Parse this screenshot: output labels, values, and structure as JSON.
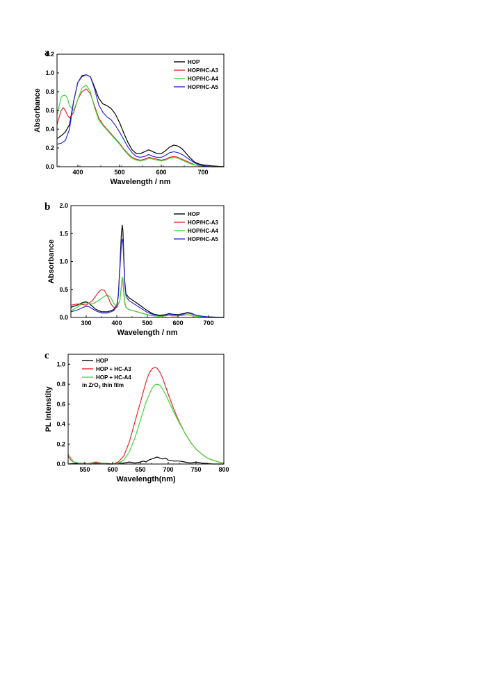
{
  "chart_data": [
    {
      "panel": "a",
      "type": "line",
      "xlabel": "Wavelength / nm",
      "ylabel": "Absorbance",
      "xlim": [
        350,
        750
      ],
      "ylim": [
        0,
        1.2
      ],
      "xticks": [
        400,
        500,
        600,
        700
      ],
      "yticks": [
        0.0,
        0.2,
        0.4,
        0.6,
        0.8,
        1.0,
        1.2
      ],
      "ytick_decimals": 1,
      "grid": false,
      "legend_position": "top-right",
      "series": [
        {
          "name": "HOP",
          "color": "#000000",
          "x": [
            350,
            360,
            370,
            380,
            390,
            400,
            410,
            420,
            430,
            440,
            450,
            460,
            470,
            480,
            490,
            500,
            510,
            520,
            530,
            540,
            550,
            560,
            570,
            580,
            590,
            600,
            610,
            620,
            630,
            640,
            650,
            660,
            670,
            680,
            690,
            700,
            720,
            750
          ],
          "y": [
            0.3,
            0.33,
            0.37,
            0.45,
            0.7,
            0.9,
            0.97,
            0.98,
            0.96,
            0.85,
            0.73,
            0.67,
            0.65,
            0.62,
            0.56,
            0.47,
            0.36,
            0.26,
            0.18,
            0.14,
            0.14,
            0.16,
            0.18,
            0.16,
            0.14,
            0.14,
            0.17,
            0.21,
            0.23,
            0.22,
            0.19,
            0.14,
            0.09,
            0.05,
            0.03,
            0.02,
            0.01,
            0.0
          ]
        },
        {
          "name": "HOP/HC-A3",
          "color": "#e8262a",
          "x": [
            350,
            360,
            365,
            370,
            375,
            380,
            390,
            400,
            410,
            420,
            430,
            440,
            450,
            460,
            470,
            480,
            490,
            500,
            510,
            520,
            530,
            540,
            550,
            560,
            570,
            580,
            590,
            600,
            610,
            620,
            630,
            640,
            650,
            660,
            670,
            680,
            690,
            700,
            720,
            750
          ],
          "y": [
            0.45,
            0.6,
            0.63,
            0.6,
            0.55,
            0.52,
            0.58,
            0.72,
            0.8,
            0.83,
            0.78,
            0.65,
            0.52,
            0.45,
            0.4,
            0.35,
            0.3,
            0.25,
            0.19,
            0.14,
            0.1,
            0.08,
            0.07,
            0.08,
            0.1,
            0.09,
            0.08,
            0.07,
            0.08,
            0.1,
            0.11,
            0.1,
            0.08,
            0.06,
            0.04,
            0.02,
            0.01,
            0.01,
            0.0,
            0.0
          ]
        },
        {
          "name": "HOP/HC-A4",
          "color": "#3ed83a",
          "x": [
            350,
            360,
            365,
            370,
            375,
            380,
            390,
            400,
            410,
            420,
            430,
            440,
            450,
            460,
            470,
            480,
            490,
            500,
            510,
            520,
            530,
            540,
            550,
            560,
            570,
            580,
            590,
            600,
            610,
            620,
            630,
            640,
            650,
            660,
            670,
            680,
            690,
            700,
            720,
            750
          ],
          "y": [
            0.55,
            0.74,
            0.76,
            0.76,
            0.73,
            0.65,
            0.6,
            0.72,
            0.84,
            0.87,
            0.8,
            0.63,
            0.5,
            0.44,
            0.39,
            0.34,
            0.29,
            0.24,
            0.18,
            0.13,
            0.09,
            0.07,
            0.06,
            0.07,
            0.09,
            0.08,
            0.07,
            0.06,
            0.07,
            0.09,
            0.1,
            0.09,
            0.07,
            0.05,
            0.03,
            0.02,
            0.01,
            0.01,
            0.0,
            0.0
          ]
        },
        {
          "name": "HOP/HC-A5",
          "color": "#2c2cd8",
          "x": [
            350,
            360,
            370,
            380,
            390,
            400,
            410,
            420,
            430,
            440,
            450,
            460,
            470,
            480,
            490,
            500,
            510,
            520,
            530,
            540,
            550,
            560,
            570,
            580,
            590,
            600,
            610,
            620,
            630,
            640,
            650,
            660,
            670,
            680,
            690,
            700,
            720,
            750
          ],
          "y": [
            0.24,
            0.25,
            0.28,
            0.4,
            0.7,
            0.9,
            0.96,
            0.98,
            0.96,
            0.83,
            0.66,
            0.58,
            0.53,
            0.5,
            0.44,
            0.37,
            0.29,
            0.21,
            0.15,
            0.11,
            0.1,
            0.11,
            0.13,
            0.11,
            0.1,
            0.1,
            0.12,
            0.15,
            0.16,
            0.15,
            0.13,
            0.1,
            0.07,
            0.04,
            0.02,
            0.01,
            0.0,
            0.0
          ]
        }
      ]
    },
    {
      "panel": "b",
      "type": "line",
      "xlabel": "Wavelength / nm",
      "ylabel": "Absorbance",
      "xlim": [
        250,
        750
      ],
      "ylim": [
        0,
        2.0
      ],
      "xticks": [
        300,
        400,
        500,
        600,
        700
      ],
      "yticks": [
        0.0,
        0.5,
        1.0,
        1.5,
        2.0
      ],
      "ytick_decimals": 1,
      "grid": false,
      "legend_position": "top-right",
      "series": [
        {
          "name": "HOP",
          "color": "#000000",
          "x": [
            250,
            270,
            290,
            300,
            310,
            330,
            350,
            370,
            390,
            400,
            405,
            410,
            415,
            418,
            420,
            423,
            426,
            430,
            440,
            460,
            480,
            500,
            520,
            540,
            560,
            570,
            580,
            600,
            620,
            630,
            640,
            660,
            680,
            700,
            750
          ],
          "y": [
            0.18,
            0.22,
            0.27,
            0.28,
            0.25,
            0.15,
            0.1,
            0.1,
            0.14,
            0.22,
            0.4,
            0.9,
            1.5,
            1.65,
            1.55,
            1.1,
            0.65,
            0.42,
            0.35,
            0.28,
            0.2,
            0.12,
            0.06,
            0.04,
            0.05,
            0.07,
            0.06,
            0.05,
            0.07,
            0.09,
            0.08,
            0.04,
            0.02,
            0.01,
            0.0
          ]
        },
        {
          "name": "HOP/HC-A3",
          "color": "#e8262a",
          "x": [
            250,
            270,
            290,
            300,
            320,
            340,
            350,
            360,
            370,
            380,
            390,
            400,
            410,
            415,
            418,
            420,
            423,
            426,
            430,
            440,
            460,
            480,
            500,
            520,
            540,
            560,
            570,
            580,
            600,
            620,
            630,
            640,
            660,
            680,
            700,
            750
          ],
          "y": [
            0.22,
            0.24,
            0.23,
            0.22,
            0.3,
            0.45,
            0.5,
            0.48,
            0.38,
            0.25,
            0.18,
            0.18,
            0.3,
            0.55,
            0.7,
            0.66,
            0.42,
            0.26,
            0.18,
            0.14,
            0.11,
            0.08,
            0.05,
            0.03,
            0.02,
            0.03,
            0.04,
            0.03,
            0.03,
            0.04,
            0.05,
            0.04,
            0.02,
            0.01,
            0.0,
            0.0
          ]
        },
        {
          "name": "HOP/HC-A4",
          "color": "#3ed83a",
          "x": [
            250,
            270,
            290,
            300,
            320,
            340,
            360,
            370,
            380,
            390,
            400,
            410,
            415,
            418,
            420,
            423,
            426,
            430,
            440,
            460,
            480,
            500,
            520,
            540,
            560,
            570,
            580,
            600,
            620,
            630,
            640,
            660,
            680,
            700,
            750
          ],
          "y": [
            0.12,
            0.18,
            0.26,
            0.26,
            0.24,
            0.3,
            0.38,
            0.4,
            0.36,
            0.25,
            0.2,
            0.3,
            0.55,
            0.72,
            0.7,
            0.45,
            0.28,
            0.18,
            0.14,
            0.11,
            0.08,
            0.05,
            0.03,
            0.02,
            0.03,
            0.04,
            0.03,
            0.03,
            0.04,
            0.05,
            0.04,
            0.02,
            0.01,
            0.0,
            0.0
          ]
        },
        {
          "name": "HOP/HC-A5",
          "color": "#2c2cd8",
          "x": [
            250,
            270,
            290,
            300,
            310,
            330,
            350,
            370,
            390,
            400,
            405,
            410,
            415,
            418,
            420,
            423,
            426,
            430,
            440,
            460,
            480,
            500,
            520,
            540,
            560,
            570,
            580,
            600,
            620,
            630,
            640,
            660,
            680,
            700,
            750
          ],
          "y": [
            0.1,
            0.13,
            0.18,
            0.2,
            0.19,
            0.12,
            0.08,
            0.08,
            0.12,
            0.2,
            0.38,
            0.85,
            1.3,
            1.4,
            1.35,
            1.0,
            0.6,
            0.38,
            0.3,
            0.23,
            0.16,
            0.09,
            0.05,
            0.03,
            0.04,
            0.06,
            0.05,
            0.04,
            0.06,
            0.08,
            0.07,
            0.04,
            0.02,
            0.01,
            0.0
          ]
        }
      ]
    },
    {
      "panel": "c",
      "type": "line",
      "xlabel": "Wavelength(nm)",
      "ylabel": "PL Intenstity",
      "xlim": [
        520,
        800
      ],
      "ylim": [
        0,
        1.1
      ],
      "xticks": [
        550,
        600,
        650,
        700,
        750,
        800
      ],
      "yticks": [
        0.0,
        0.2,
        0.4,
        0.6,
        0.8,
        1.0
      ],
      "ytick_decimals": 1,
      "grid": false,
      "legend_position": "top-left",
      "annotation": {
        "text": "in ZrO",
        "sub": "2",
        "after": " thin film"
      },
      "series": [
        {
          "name": "HOP",
          "color": "#000000",
          "x": [
            520,
            540,
            560,
            580,
            600,
            610,
            620,
            630,
            640,
            650,
            655,
            660,
            665,
            670,
            675,
            680,
            685,
            690,
            695,
            700,
            710,
            720,
            730,
            740,
            750,
            760,
            780,
            800
          ],
          "y": [
            0.0,
            0.01,
            0.0,
            0.01,
            0.0,
            0.01,
            0.01,
            0.02,
            0.01,
            0.02,
            0.03,
            0.02,
            0.04,
            0.05,
            0.06,
            0.07,
            0.06,
            0.05,
            0.06,
            0.04,
            0.03,
            0.03,
            0.02,
            0.01,
            0.02,
            0.01,
            0.0,
            0.0
          ]
        },
        {
          "name": "HOP + HC-A3",
          "color": "#e8262a",
          "x": [
            520,
            525,
            530,
            540,
            550,
            560,
            570,
            580,
            590,
            600,
            610,
            620,
            630,
            640,
            650,
            660,
            665,
            670,
            675,
            680,
            685,
            690,
            695,
            700,
            710,
            720,
            730,
            740,
            750,
            760,
            770,
            780,
            790,
            800
          ],
          "y": [
            0.08,
            0.04,
            0.02,
            0.01,
            0.0,
            0.01,
            0.02,
            0.01,
            0.0,
            0.0,
            0.02,
            0.08,
            0.22,
            0.42,
            0.62,
            0.82,
            0.9,
            0.95,
            0.97,
            0.96,
            0.92,
            0.86,
            0.78,
            0.7,
            0.55,
            0.42,
            0.31,
            0.22,
            0.15,
            0.1,
            0.06,
            0.04,
            0.02,
            0.01
          ]
        },
        {
          "name": "HOP + HC-A4",
          "color": "#3ed83a",
          "x": [
            520,
            522,
            525,
            530,
            540,
            550,
            560,
            570,
            580,
            590,
            600,
            610,
            620,
            630,
            640,
            650,
            660,
            670,
            675,
            680,
            685,
            690,
            695,
            700,
            710,
            720,
            730,
            740,
            750,
            760,
            770,
            780,
            790,
            800
          ],
          "y": [
            0.1,
            0.08,
            0.06,
            0.02,
            0.01,
            0.0,
            0.01,
            0.01,
            0.01,
            0.0,
            0.0,
            0.01,
            0.04,
            0.12,
            0.26,
            0.44,
            0.62,
            0.75,
            0.79,
            0.8,
            0.79,
            0.75,
            0.7,
            0.64,
            0.52,
            0.41,
            0.31,
            0.22,
            0.15,
            0.1,
            0.06,
            0.04,
            0.02,
            0.01
          ]
        }
      ]
    }
  ],
  "panels": [
    {
      "label": "a"
    },
    {
      "label": "b"
    },
    {
      "label": "c"
    }
  ]
}
